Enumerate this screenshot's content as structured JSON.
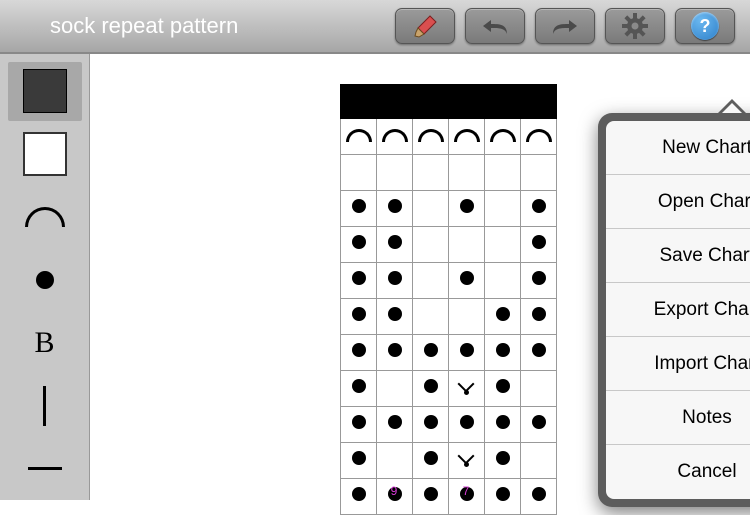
{
  "title": "sock repeat pattern",
  "colors": {
    "toolbar_top": "#d8d8d8",
    "toolbar_bottom": "#a6a6a6",
    "sidebar_bg": "#c8c8c8",
    "button_bg": "#8a8a8a",
    "help_blue": "#2d7fc9",
    "col_label": "#d63bd6",
    "grid_border": "#999999",
    "dark_swatch": "#3a3a3a"
  },
  "toolbar": {
    "brush_label": "brush",
    "undo_label": "undo",
    "redo_label": "redo",
    "gear_label": "settings",
    "help_label": "?"
  },
  "tools": [
    {
      "id": "dark-swatch",
      "selected": true
    },
    {
      "id": "light-swatch",
      "selected": false
    },
    {
      "id": "arc",
      "selected": false
    },
    {
      "id": "dot",
      "selected": false
    },
    {
      "id": "letter-b",
      "selected": false,
      "glyph": "B"
    },
    {
      "id": "vertical-bar",
      "selected": false
    },
    {
      "id": "horizontal-bar",
      "selected": false
    }
  ],
  "chart": {
    "type": "grid",
    "cols": 6,
    "rows": 12,
    "header_bg": "#000000",
    "cell_size": 36,
    "cells": [
      [
        "hdr",
        "hdr",
        "hdr",
        "hdr",
        "hdr",
        "hdr"
      ],
      [
        "arc",
        "arc",
        "arc",
        "arc",
        "arc",
        "arc"
      ],
      [
        "",
        "",
        "",
        "",
        "",
        ""
      ],
      [
        "dot",
        "dot",
        "",
        "dot",
        "",
        "dot"
      ],
      [
        "dot",
        "dot",
        "",
        "",
        "",
        "dot"
      ],
      [
        "dot",
        "dot",
        "",
        "dot",
        "",
        "dot"
      ],
      [
        "dot",
        "dot",
        "",
        "",
        "dot",
        "dot"
      ],
      [
        "dot",
        "dot",
        "dot",
        "dot",
        "dot",
        "dot"
      ],
      [
        "dot",
        "",
        "dot",
        "chev",
        "dot",
        ""
      ],
      [
        "dot",
        "dot",
        "dot",
        "dot",
        "dot",
        "dot"
      ],
      [
        "dot",
        "",
        "dot",
        "chev",
        "dot",
        ""
      ],
      [
        "dot",
        "dot",
        "dot",
        "dot",
        "dot",
        "dot"
      ]
    ],
    "col_labels": [
      "",
      "9",
      "",
      "7",
      "",
      ""
    ]
  },
  "menu": {
    "items": [
      "New Chart",
      "Open Chart",
      "Save Chart",
      "Export Chart",
      "Import Chart",
      "Notes",
      "Cancel"
    ]
  }
}
